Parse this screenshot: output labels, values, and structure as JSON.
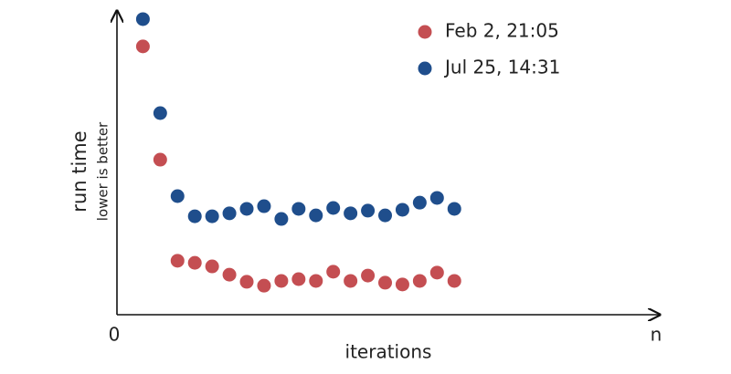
{
  "chart_data": {
    "type": "scatter",
    "y_label": "run time",
    "y_sublabel": "lower is better",
    "x_label": "iterations",
    "xlim": [
      0,
      31
    ],
    "xticks": [
      0,
      {
        "value": 31,
        "label": "n"
      }
    ],
    "ylim": [
      0,
      100
    ],
    "legend": "upper right",
    "series": [
      {
        "name": "Feb 2, 21:05",
        "color": "#c44e52",
        "x": [
          1.5,
          2.5,
          3.5,
          4.5,
          5.5,
          6.5,
          7.5,
          8.5,
          9.5,
          10.5,
          11.5,
          12.5,
          13.5,
          14.5,
          15.5,
          16.5,
          17.5,
          18.5,
          19.5
        ],
        "values": [
          90.5,
          52.3,
          18.2,
          17.5,
          16.3,
          13.5,
          11.1,
          9.8,
          11.4,
          12,
          11.4,
          14.5,
          11.4,
          13.2,
          10.8,
          10.2,
          11.4,
          14.2,
          11.4
        ]
      },
      {
        "name": "Jul 25, 14:31",
        "color": "#1f4e8c",
        "x": [
          1.5,
          2.5,
          3.5,
          4.5,
          5.5,
          6.5,
          7.5,
          8.5,
          9.5,
          10.5,
          11.5,
          12.5,
          13.5,
          14.5,
          15.5,
          16.5,
          17.5,
          18.5,
          19.5
        ],
        "values": [
          99.7,
          68,
          40,
          33.2,
          33.2,
          34.2,
          35.7,
          36.6,
          32.3,
          35.7,
          33.5,
          36,
          34.2,
          35.1,
          33.5,
          35.4,
          37.8,
          39.4,
          35.7
        ]
      }
    ]
  }
}
